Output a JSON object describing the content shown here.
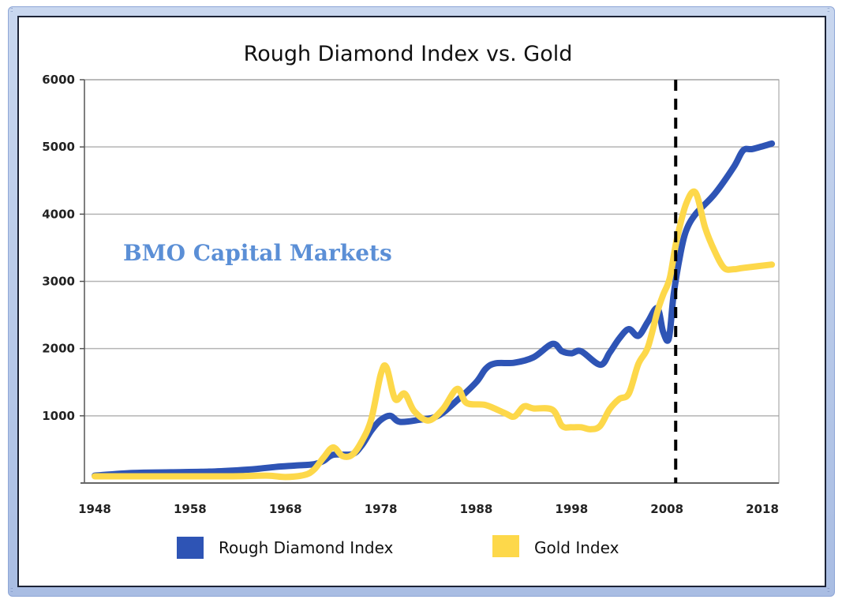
{
  "chart_data": {
    "type": "line",
    "title": "Rough Diamond Index vs. Gold",
    "xlabel": "",
    "ylabel": "",
    "xlim": [
      1948,
      2019
    ],
    "ylim": [
      0,
      6000
    ],
    "x_ticks": [
      "1948",
      "1958",
      "1968",
      "1978",
      "1988",
      "1998",
      "2008",
      "2018"
    ],
    "x_tick_values": [
      1948,
      1958,
      1968,
      1978,
      1988,
      1998,
      2008,
      2018
    ],
    "y_ticks": [
      "1000",
      "2000",
      "3000",
      "4000",
      "5000",
      "6000"
    ],
    "y_tick_values": [
      1000,
      2000,
      3000,
      4000,
      5000,
      6000
    ],
    "grid": true,
    "legend_position": "bottom",
    "annotation": {
      "text": "BMO Capital Markets",
      "color": "#5b8fd6"
    },
    "vertical_marker": {
      "year": 2009,
      "style": "dashed",
      "color": "#000000"
    },
    "series": [
      {
        "name": "Rough Diamond Index",
        "color": "#2e54b5",
        "points": [
          [
            1948,
            110
          ],
          [
            1952,
            150
          ],
          [
            1956,
            160
          ],
          [
            1960,
            170
          ],
          [
            1963,
            190
          ],
          [
            1965,
            210
          ],
          [
            1967,
            240
          ],
          [
            1969,
            260
          ],
          [
            1971,
            280
          ],
          [
            1972,
            330
          ],
          [
            1973,
            420
          ],
          [
            1975,
            430
          ],
          [
            1976,
            560
          ],
          [
            1977,
            780
          ],
          [
            1978,
            940
          ],
          [
            1979,
            1000
          ],
          [
            1980,
            910
          ],
          [
            1982,
            940
          ],
          [
            1984,
            1000
          ],
          [
            1986,
            1230
          ],
          [
            1988,
            1500
          ],
          [
            1989,
            1700
          ],
          [
            1990,
            1780
          ],
          [
            1992,
            1790
          ],
          [
            1994,
            1870
          ],
          [
            1996,
            2070
          ],
          [
            1997,
            1960
          ],
          [
            1998,
            1930
          ],
          [
            1999,
            1960
          ],
          [
            2001,
            1760
          ],
          [
            2002,
            1940
          ],
          [
            2003,
            2150
          ],
          [
            2004,
            2290
          ],
          [
            2005,
            2190
          ],
          [
            2006,
            2400
          ],
          [
            2007,
            2600
          ],
          [
            2007.6,
            2250
          ],
          [
            2008.2,
            2150
          ],
          [
            2008.7,
            2800
          ],
          [
            2009.4,
            3400
          ],
          [
            2010,
            3750
          ],
          [
            2011,
            4000
          ],
          [
            2013,
            4300
          ],
          [
            2015,
            4700
          ],
          [
            2016,
            4950
          ],
          [
            2017,
            4970
          ],
          [
            2019,
            5050
          ]
        ]
      },
      {
        "name": "Gold Index",
        "color": "#fdd84a",
        "points": [
          [
            1948,
            100
          ],
          [
            1955,
            100
          ],
          [
            1962,
            100
          ],
          [
            1966,
            110
          ],
          [
            1968,
            90
          ],
          [
            1970,
            120
          ],
          [
            1971,
            200
          ],
          [
            1972,
            380
          ],
          [
            1973,
            530
          ],
          [
            1974,
            400
          ],
          [
            1975,
            420
          ],
          [
            1976,
            620
          ],
          [
            1977,
            950
          ],
          [
            1978,
            1620
          ],
          [
            1978.6,
            1720
          ],
          [
            1979.5,
            1250
          ],
          [
            1980.5,
            1330
          ],
          [
            1981.5,
            1070
          ],
          [
            1983,
            930
          ],
          [
            1984.5,
            1100
          ],
          [
            1986,
            1400
          ],
          [
            1987,
            1190
          ],
          [
            1989,
            1160
          ],
          [
            1991,
            1040
          ],
          [
            1992,
            990
          ],
          [
            1993,
            1140
          ],
          [
            1994,
            1110
          ],
          [
            1996,
            1090
          ],
          [
            1997,
            850
          ],
          [
            1998,
            830
          ],
          [
            1999,
            830
          ],
          [
            2000,
            800
          ],
          [
            2001,
            850
          ],
          [
            2002,
            1100
          ],
          [
            2003,
            1250
          ],
          [
            2004,
            1330
          ],
          [
            2005,
            1770
          ],
          [
            2006,
            2020
          ],
          [
            2007,
            2550
          ],
          [
            2007.6,
            2800
          ],
          [
            2008.3,
            3050
          ],
          [
            2009,
            3600
          ],
          [
            2010,
            4150
          ],
          [
            2011,
            4320
          ],
          [
            2012,
            3800
          ],
          [
            2013,
            3450
          ],
          [
            2014,
            3200
          ],
          [
            2015,
            3180
          ],
          [
            2016,
            3200
          ],
          [
            2019,
            3250
          ]
        ]
      }
    ]
  }
}
